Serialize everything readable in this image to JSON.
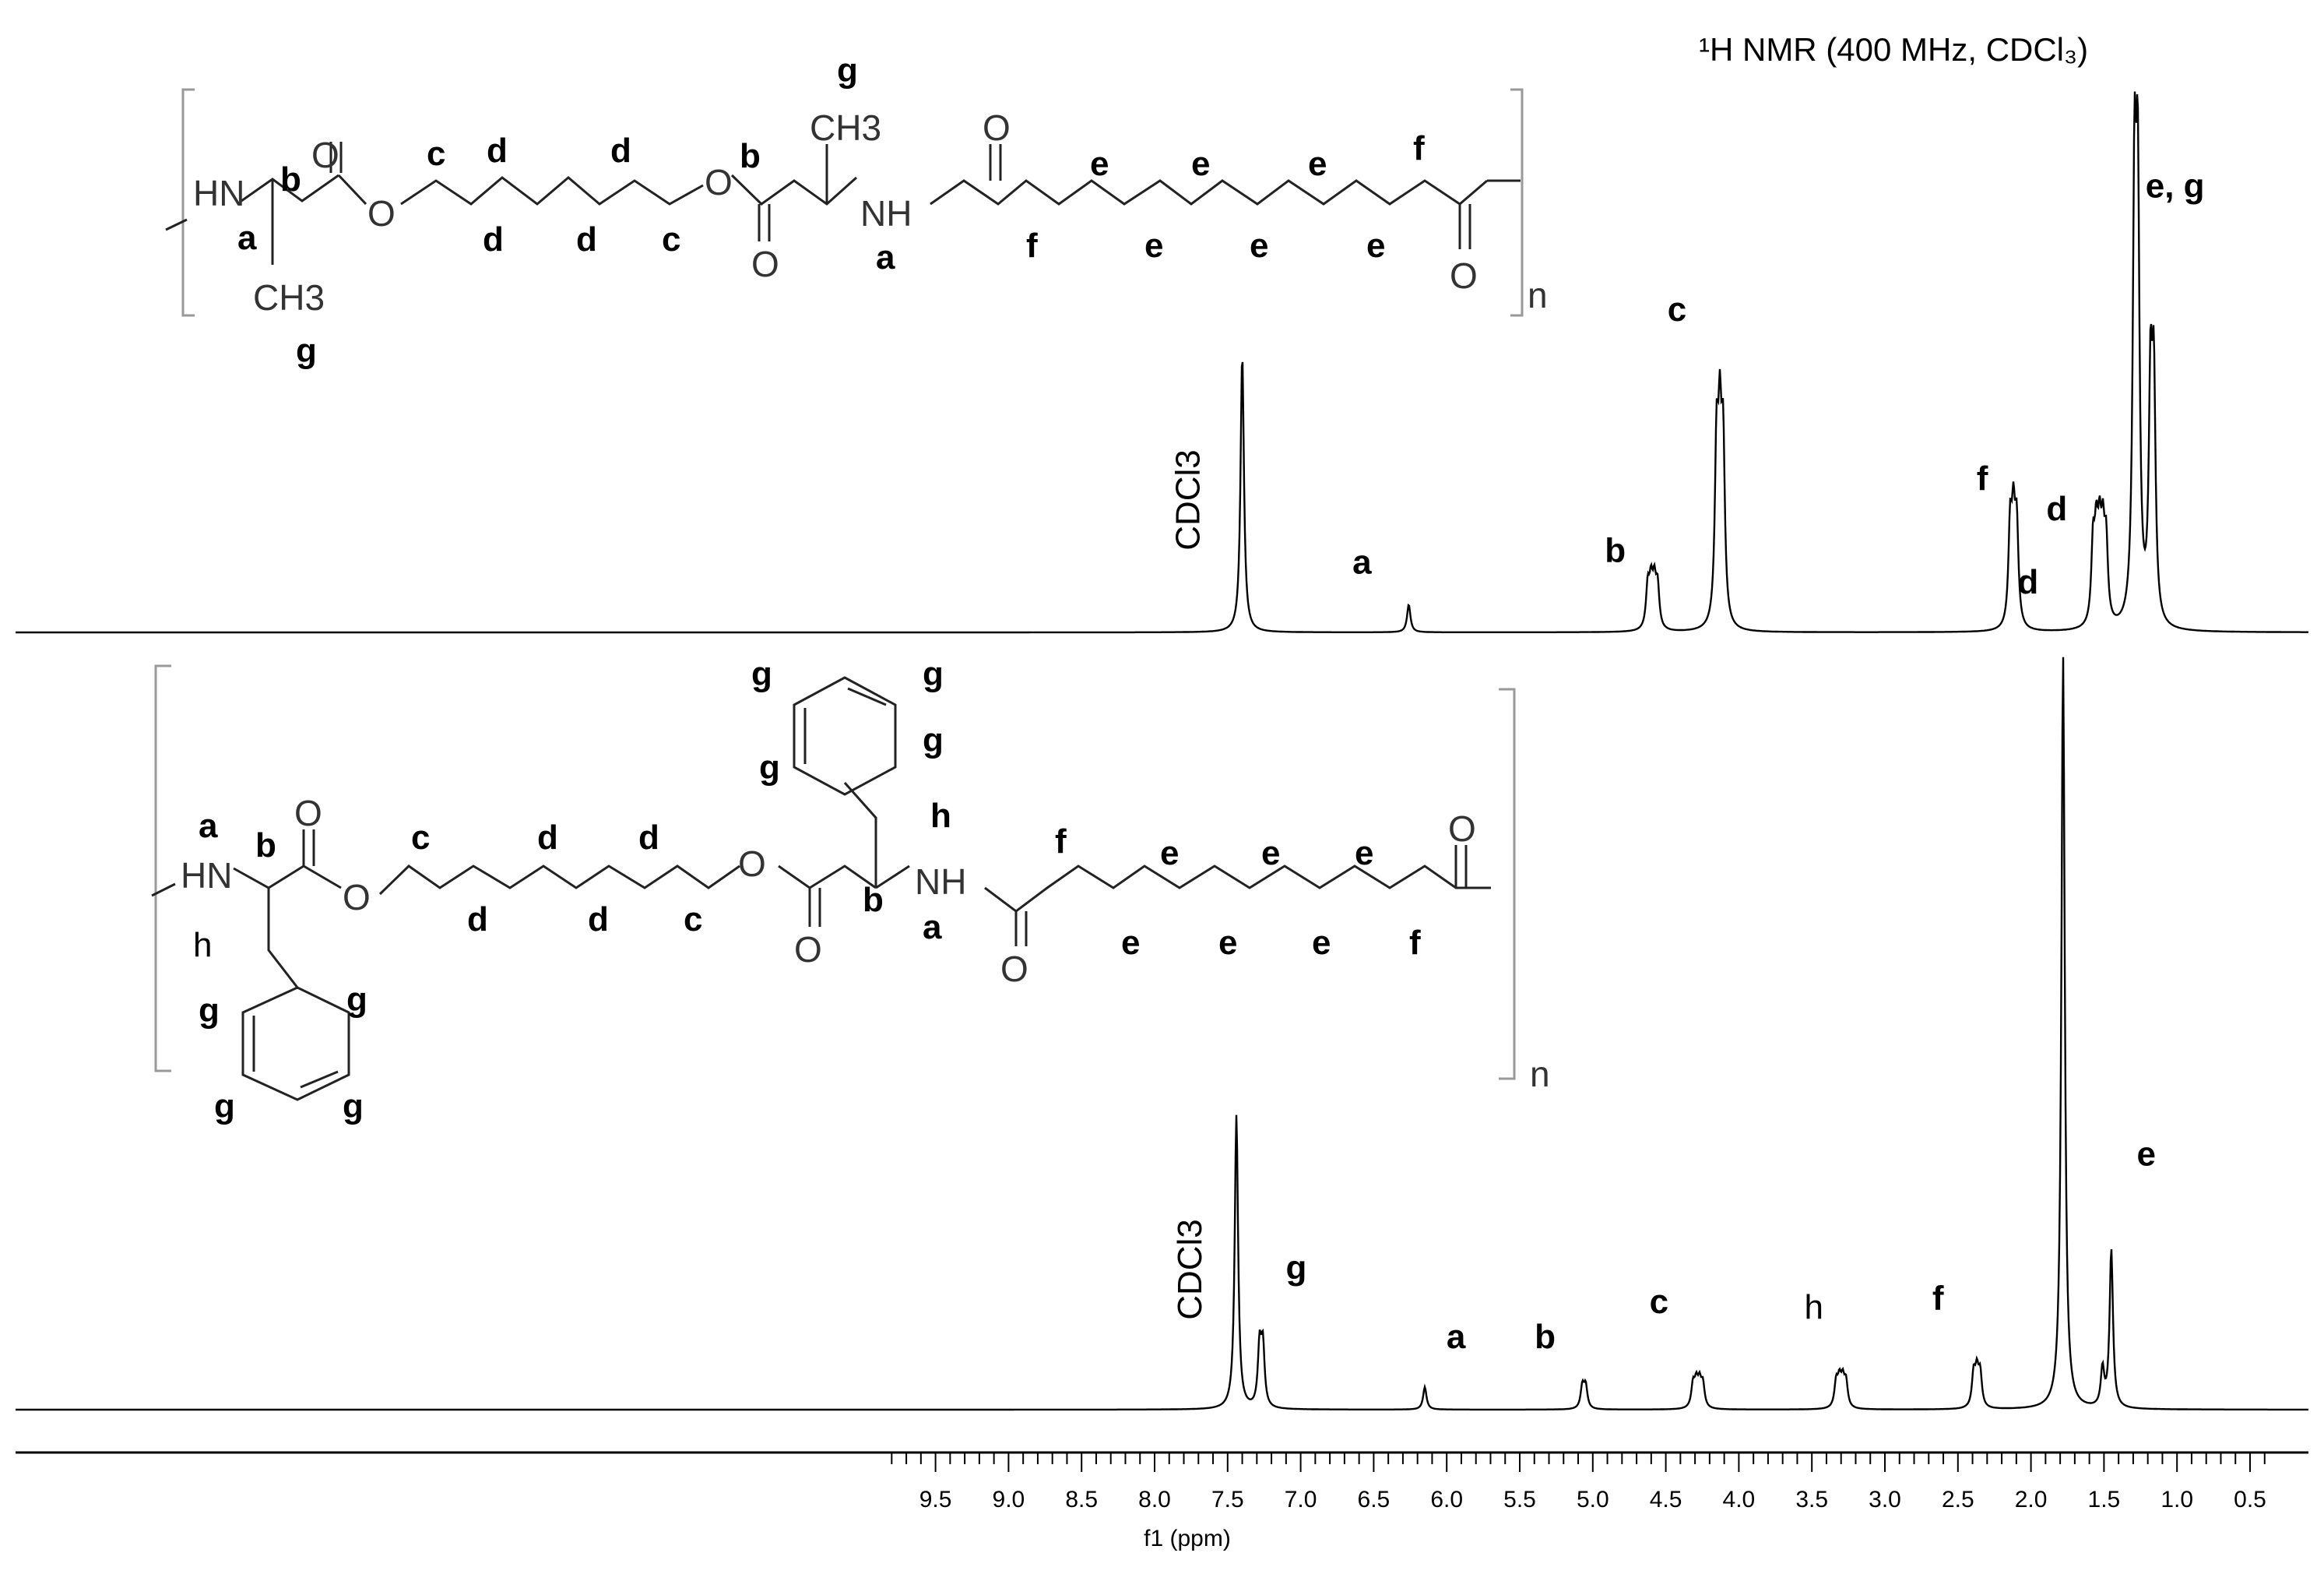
{
  "chart_data": {
    "type": "line",
    "title": "¹H NMR (400  MHz, CDCl₃)",
    "xlabel": "f1 (ppm)",
    "xlim": [
      9.85,
      0.35
    ],
    "x_ticks": [
      "9.5",
      "9.0",
      "8.5",
      "8.0",
      "7.5",
      "7.0",
      "6.5",
      "6.0",
      "5.5",
      "5.0",
      "4.5",
      "4.0",
      "3.5",
      "3.0",
      "2.5",
      "2.0",
      "1.5",
      "1.0",
      "0.5"
    ],
    "series": [
      {
        "peaks": [
          {
            "ppm": 7.4,
            "height": 1.0,
            "mult": 1,
            "label": "CDCl3"
          },
          {
            "ppm": 6.26,
            "height": 0.1,
            "mult": 1,
            "label": "a"
          },
          {
            "ppm": 4.59,
            "height": 0.17,
            "mult": 4,
            "label": "b"
          },
          {
            "ppm": 4.13,
            "height": 0.7,
            "mult": 3,
            "label": "c"
          },
          {
            "ppm": 2.12,
            "height": 0.4,
            "mult": 3,
            "label": "f"
          },
          {
            "ppm": 1.53,
            "height": 0.32,
            "mult": 5,
            "label": "d"
          },
          {
            "ppm": 1.28,
            "height": 1.48,
            "mult": 2,
            "label": "e, g"
          },
          {
            "ppm": 1.17,
            "height": 0.82,
            "mult": 2,
            "label": ""
          }
        ]
      },
      {
        "peaks": [
          {
            "ppm": 7.44,
            "height": 0.39,
            "mult": 1,
            "label": "CDCl3"
          },
          {
            "ppm": 7.27,
            "height": 0.08,
            "mult": 2,
            "label": "g"
          },
          {
            "ppm": 6.15,
            "height": 0.03,
            "mult": 1,
            "label": "a"
          },
          {
            "ppm": 5.06,
            "height": 0.03,
            "mult": 2,
            "label": "b"
          },
          {
            "ppm": 4.28,
            "height": 0.035,
            "mult": 4,
            "label": "c"
          },
          {
            "ppm": 3.3,
            "height": 0.038,
            "mult": 4,
            "label": "h"
          },
          {
            "ppm": 2.37,
            "height": 0.05,
            "mult": 3,
            "label": "f"
          },
          {
            "ppm": 1.78,
            "height": 1.0,
            "mult": 1,
            "label": "d"
          },
          {
            "ppm": 1.45,
            "height": 0.21,
            "mult": 1,
            "label": "e"
          },
          {
            "ppm": 1.51,
            "height": 0.05,
            "mult": 1,
            "label": ""
          }
        ]
      }
    ]
  },
  "structures": {
    "top": {
      "atoms": {
        "hn": "HN",
        "o_ester1": "O",
        "o_carbonyl1": "O",
        "o_ester2": "O",
        "o_carbonyl2": "O",
        "ch3_left": "CH3",
        "ch3_right": "CH3",
        "nh": "NH",
        "o_amide1": "O",
        "o_amide2": "O",
        "n": "n"
      },
      "labels": [
        "a",
        "b",
        "c",
        "d",
        "d",
        "d",
        "d",
        "c",
        "b",
        "a",
        "g",
        "g",
        "f",
        "e",
        "e",
        "e",
        "e",
        "e",
        "e",
        "f"
      ]
    },
    "bottom": {
      "atoms": {
        "hn": "HN",
        "o_ester1": "O",
        "o_carbonyl1": "O",
        "o_ester2": "O",
        "o_carbonyl2": "O",
        "nh": "NH",
        "o_amide1": "O",
        "o_amide2": "O",
        "n": "n"
      },
      "labels": [
        "a",
        "b",
        "h",
        "g",
        "g",
        "g",
        "g",
        "c",
        "d",
        "d",
        "d",
        "d",
        "c",
        "g",
        "g",
        "g",
        "g",
        "h",
        "b",
        "a",
        "f",
        "e",
        "e",
        "e",
        "e",
        "e",
        "e",
        "f"
      ]
    }
  }
}
